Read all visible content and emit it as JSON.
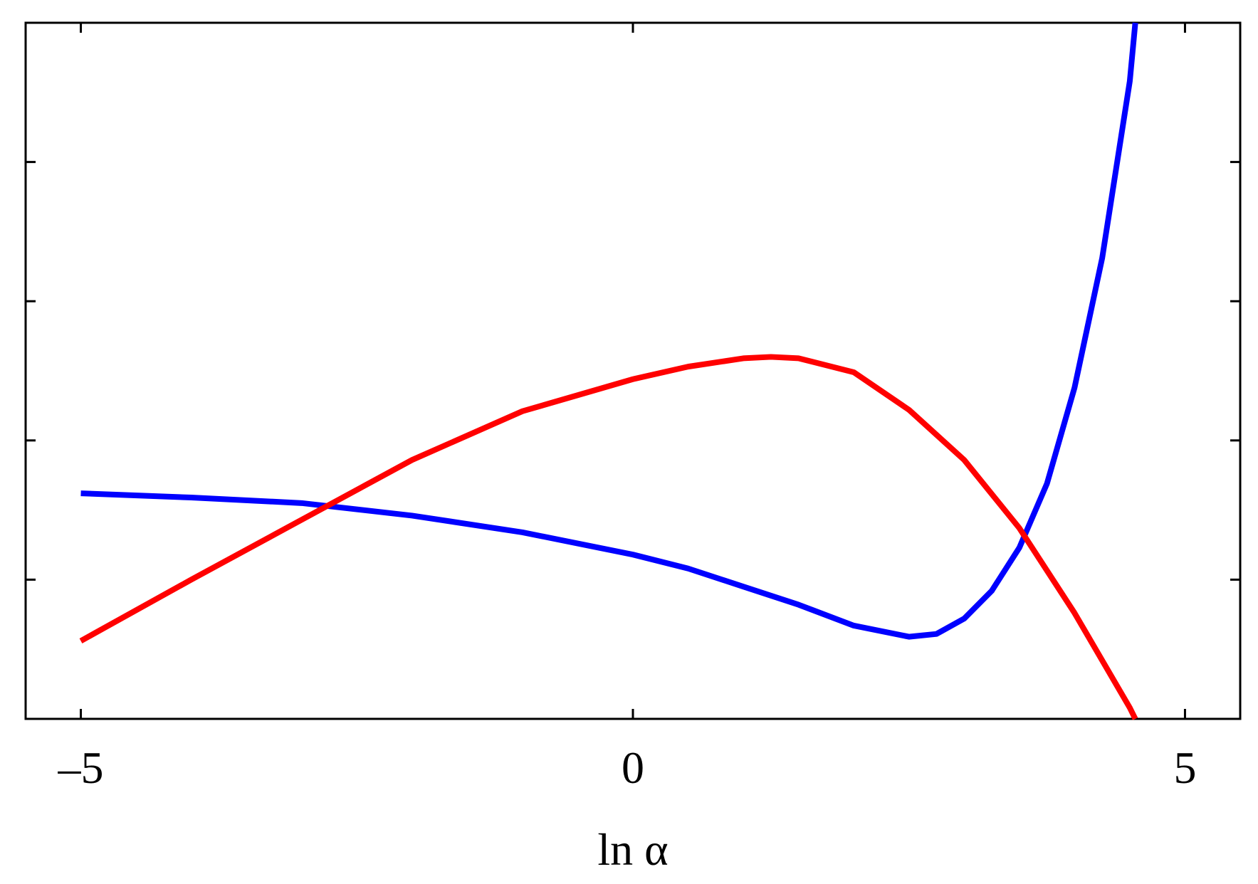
{
  "chart_data": {
    "type": "line",
    "xlabel": "ln α",
    "xlim": [
      -5.5,
      5.5
    ],
    "xticks": [
      {
        "value": -5,
        "label": "–5"
      },
      0,
      5
    ],
    "ylim": [
      0,
      5
    ],
    "yticks": [
      0,
      1,
      2,
      3,
      4,
      5
    ],
    "series": [
      {
        "color": "#0000ff",
        "x": [
          -5,
          -4,
          -3,
          -2,
          -1,
          0,
          0.5,
          1,
          1.5,
          2,
          2.5,
          2.75,
          3,
          3.25,
          3.5,
          3.75,
          4,
          4.25,
          4.5,
          4.55
        ],
        "values": [
          1.62,
          1.59,
          1.55,
          1.46,
          1.34,
          1.18,
          1.08,
          0.95,
          0.82,
          0.67,
          0.59,
          0.61,
          0.72,
          0.92,
          1.23,
          1.69,
          2.38,
          3.31,
          4.58,
          5.0
        ]
      },
      {
        "color": "#ff0000",
        "x": [
          -5,
          -4,
          -3,
          -2,
          -1,
          0,
          0.5,
          1,
          1.25,
          1.5,
          2,
          2.5,
          3,
          3.5,
          4,
          4.5,
          4.55
        ],
        "values": [
          0.56,
          1.0,
          1.43,
          1.86,
          2.21,
          2.44,
          2.53,
          2.59,
          2.6,
          2.59,
          2.49,
          2.22,
          1.86,
          1.37,
          0.76,
          0.08,
          0
        ]
      }
    ]
  }
}
